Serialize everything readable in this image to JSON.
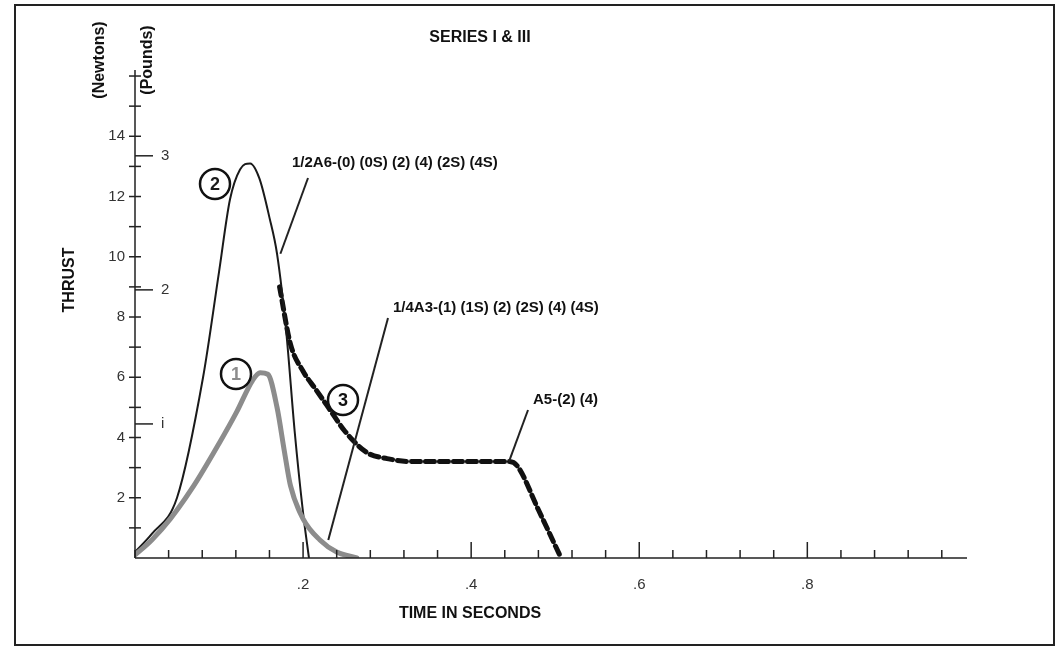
{
  "chart_data": {
    "type": "line",
    "title": "SERIES I & III",
    "xlabel": "TIME IN SECONDS",
    "ylabel": "THRUST",
    "y2label": "(Pounds)",
    "xlim": [
      0,
      0.99
    ],
    "xticks": [
      {
        "value": 0,
        "label": null
      },
      {
        "value": 0.04,
        "label": null
      },
      {
        "value": 0.08,
        "label": null
      },
      {
        "value": 0.12,
        "label": null
      },
      {
        "value": 0.16,
        "label": null
      },
      {
        "value": 0.2,
        "label": ".2"
      },
      {
        "value": 0.24,
        "label": null
      },
      {
        "value": 0.28,
        "label": null
      },
      {
        "value": 0.32,
        "label": null
      },
      {
        "value": 0.36,
        "label": null
      },
      {
        "value": 0.4,
        "label": ".4"
      },
      {
        "value": 0.44,
        "label": null
      },
      {
        "value": 0.48,
        "label": null
      },
      {
        "value": 0.52,
        "label": null
      },
      {
        "value": 0.56,
        "label": null
      },
      {
        "value": 0.6,
        "label": ".6"
      },
      {
        "value": 0.64,
        "label": null
      },
      {
        "value": 0.68,
        "label": null
      },
      {
        "value": 0.72,
        "label": null
      },
      {
        "value": 0.76,
        "label": null
      },
      {
        "value": 0.8,
        "label": ".8"
      },
      {
        "value": 0.84,
        "label": null
      },
      {
        "value": 0.88,
        "label": null
      },
      {
        "value": 0.92,
        "label": null
      },
      {
        "value": 0.96,
        "label": null
      }
    ],
    "ylim": [
      0,
      16.2
    ],
    "yticks": [
      {
        "value": 0,
        "label": null
      },
      {
        "value": 1,
        "label": null
      },
      2,
      {
        "value": 3,
        "label": null
      },
      4,
      {
        "value": 5,
        "label": null
      },
      6,
      {
        "value": 7,
        "label": null
      },
      8,
      {
        "value": 9,
        "label": null
      },
      10,
      {
        "value": 11,
        "label": null
      },
      12,
      {
        "value": 13,
        "label": null
      },
      14,
      {
        "value": 15,
        "label": null
      },
      {
        "value": 16,
        "label": null
      }
    ],
    "y2lim": [
      0,
      3.64
    ],
    "y2ticks": [
      {
        "value": 1,
        "label": "i"
      },
      2,
      3
    ],
    "legend": false,
    "marker": "none",
    "series": [
      {
        "name": "1",
        "color": "#8c8c8c",
        "line_style": "solid",
        "x": [
          0,
          0.02,
          0.042,
          0.07,
          0.1,
          0.121,
          0.14,
          0.149,
          0.158,
          0.169,
          0.178,
          0.185,
          0.2,
          0.22,
          0.24,
          0.264
        ],
        "values": [
          0.1,
          0.6,
          1.3,
          2.4,
          3.8,
          4.85,
          5.9,
          6.15,
          6.1,
          5.0,
          3.5,
          2.4,
          1.3,
          0.6,
          0.2,
          0
        ]
      },
      {
        "name": "2",
        "color": "#1a1a1a",
        "line_style": "solid",
        "x": [
          0,
          0.02,
          0.05,
          0.081,
          0.1,
          0.113,
          0.125,
          0.137,
          0.148,
          0.16,
          0.169,
          0.18,
          0.19,
          0.2,
          0.207
        ],
        "values": [
          0.2,
          0.8,
          2.0,
          6.0,
          9.5,
          11.9,
          12.9,
          13.1,
          12.6,
          11.3,
          10.1,
          7.5,
          4.2,
          1.5,
          0
        ]
      },
      {
        "name": "3",
        "color": "#111111",
        "line_style": "dashed",
        "x": [
          0.172,
          0.185,
          0.2,
          0.215,
          0.23,
          0.25,
          0.276,
          0.3,
          0.33,
          0.36,
          0.4,
          0.445,
          0.455,
          0.48,
          0.507
        ],
        "values": [
          9.0,
          7.1,
          6.2,
          5.6,
          5.0,
          4.2,
          3.5,
          3.3,
          3.2,
          3.2,
          3.2,
          3.2,
          3.05,
          1.6,
          0
        ]
      }
    ],
    "annotations": [
      "(Newtons)",
      {
        "text": "1/2A6-(0) (0S) (2) (4) (2S) (4S)",
        "x": 0.173,
        "y": 10.1
      },
      {
        "text": "1/4A3-(1) (1S) (2) (2S) (4) (4S)",
        "x": 0.23,
        "y": 0.6
      },
      {
        "text": "A5-(2) (4)",
        "x": 0.445,
        "y": 3.2
      }
    ]
  }
}
